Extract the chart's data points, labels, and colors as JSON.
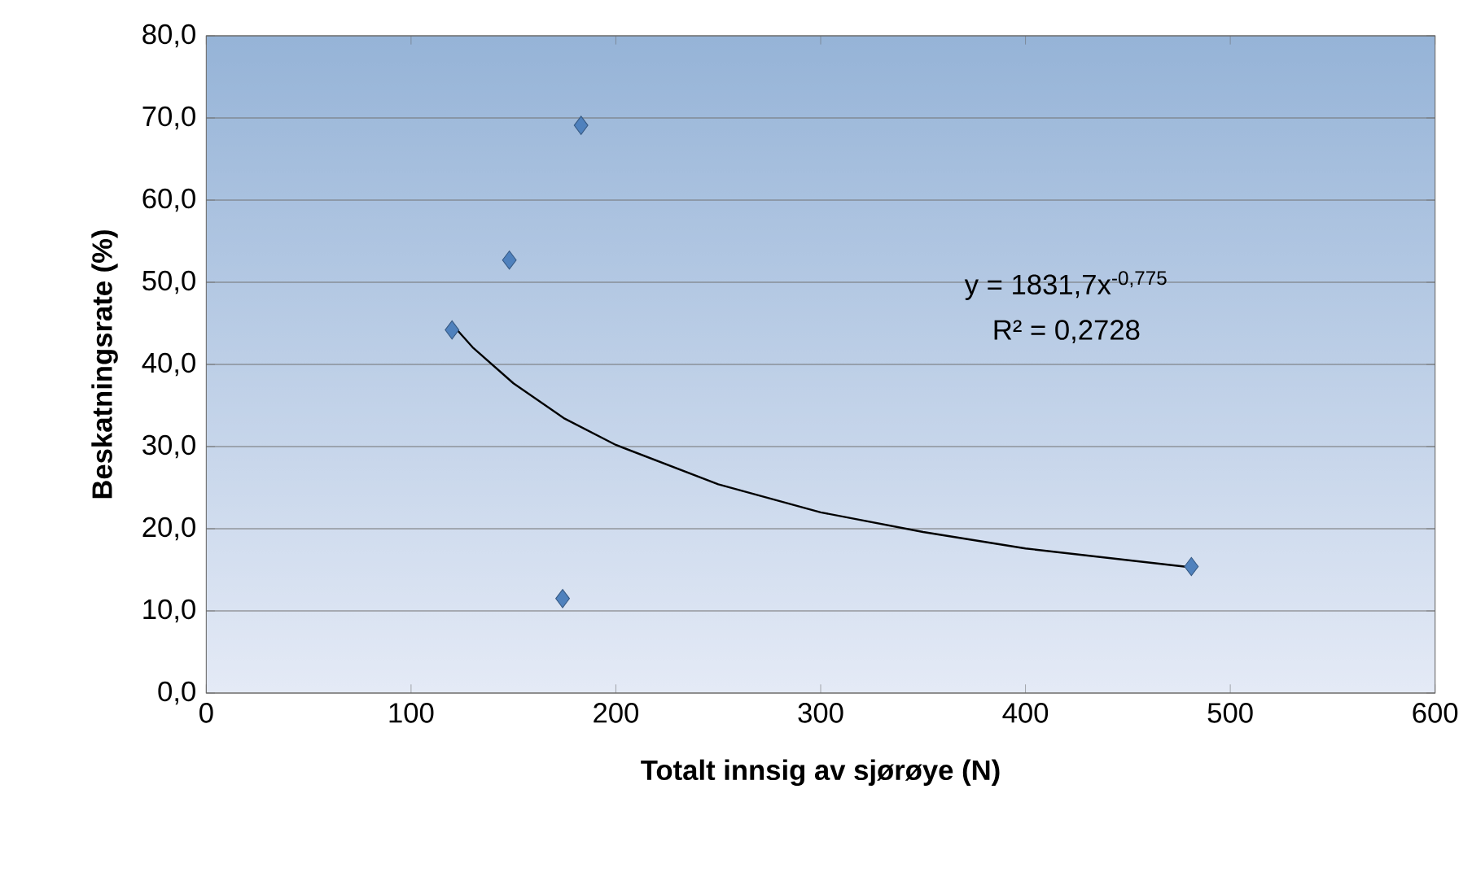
{
  "chart_data": {
    "type": "scatter",
    "xlabel": "Totalt innsig av sjørøye (N)",
    "ylabel": "Beskatningsrate (%)",
    "xlim": [
      0,
      600
    ],
    "xticks": [
      0,
      100,
      200,
      300,
      400,
      500,
      600
    ],
    "ylim": [
      0,
      80
    ],
    "yticks": [
      {
        "value": 0,
        "label": "0,0"
      },
      {
        "value": 10,
        "label": "10,0"
      },
      {
        "value": 20,
        "label": "20,0"
      },
      {
        "value": 30,
        "label": "30,0"
      },
      {
        "value": 40,
        "label": "40,0"
      },
      {
        "value": 50,
        "label": "50,0"
      },
      {
        "value": 60,
        "label": "60,0"
      },
      {
        "value": 70,
        "label": "70,0"
      },
      {
        "value": 80,
        "label": "80,0"
      }
    ],
    "grid": "y",
    "marker": "diamond",
    "series": [
      {
        "color": "#4f81bd",
        "x": [
          120,
          148,
          183,
          174,
          481
        ],
        "values": [
          44.2,
          52.7,
          69.1,
          11.5,
          15.4
        ]
      },
      {
        "type": "line",
        "color": "#000000",
        "marker": "none",
        "x": [
          120,
          130,
          150,
          175,
          200,
          250,
          300,
          350,
          400,
          481
        ],
        "values": [
          44.9,
          42.1,
          37.7,
          33.4,
          30.2,
          25.4,
          22.0,
          19.6,
          17.6,
          15.3
        ]
      }
    ],
    "annotations": [
      "y = 1831,7x$^{-0,775}$",
      "R² = 0,2728"
    ]
  }
}
